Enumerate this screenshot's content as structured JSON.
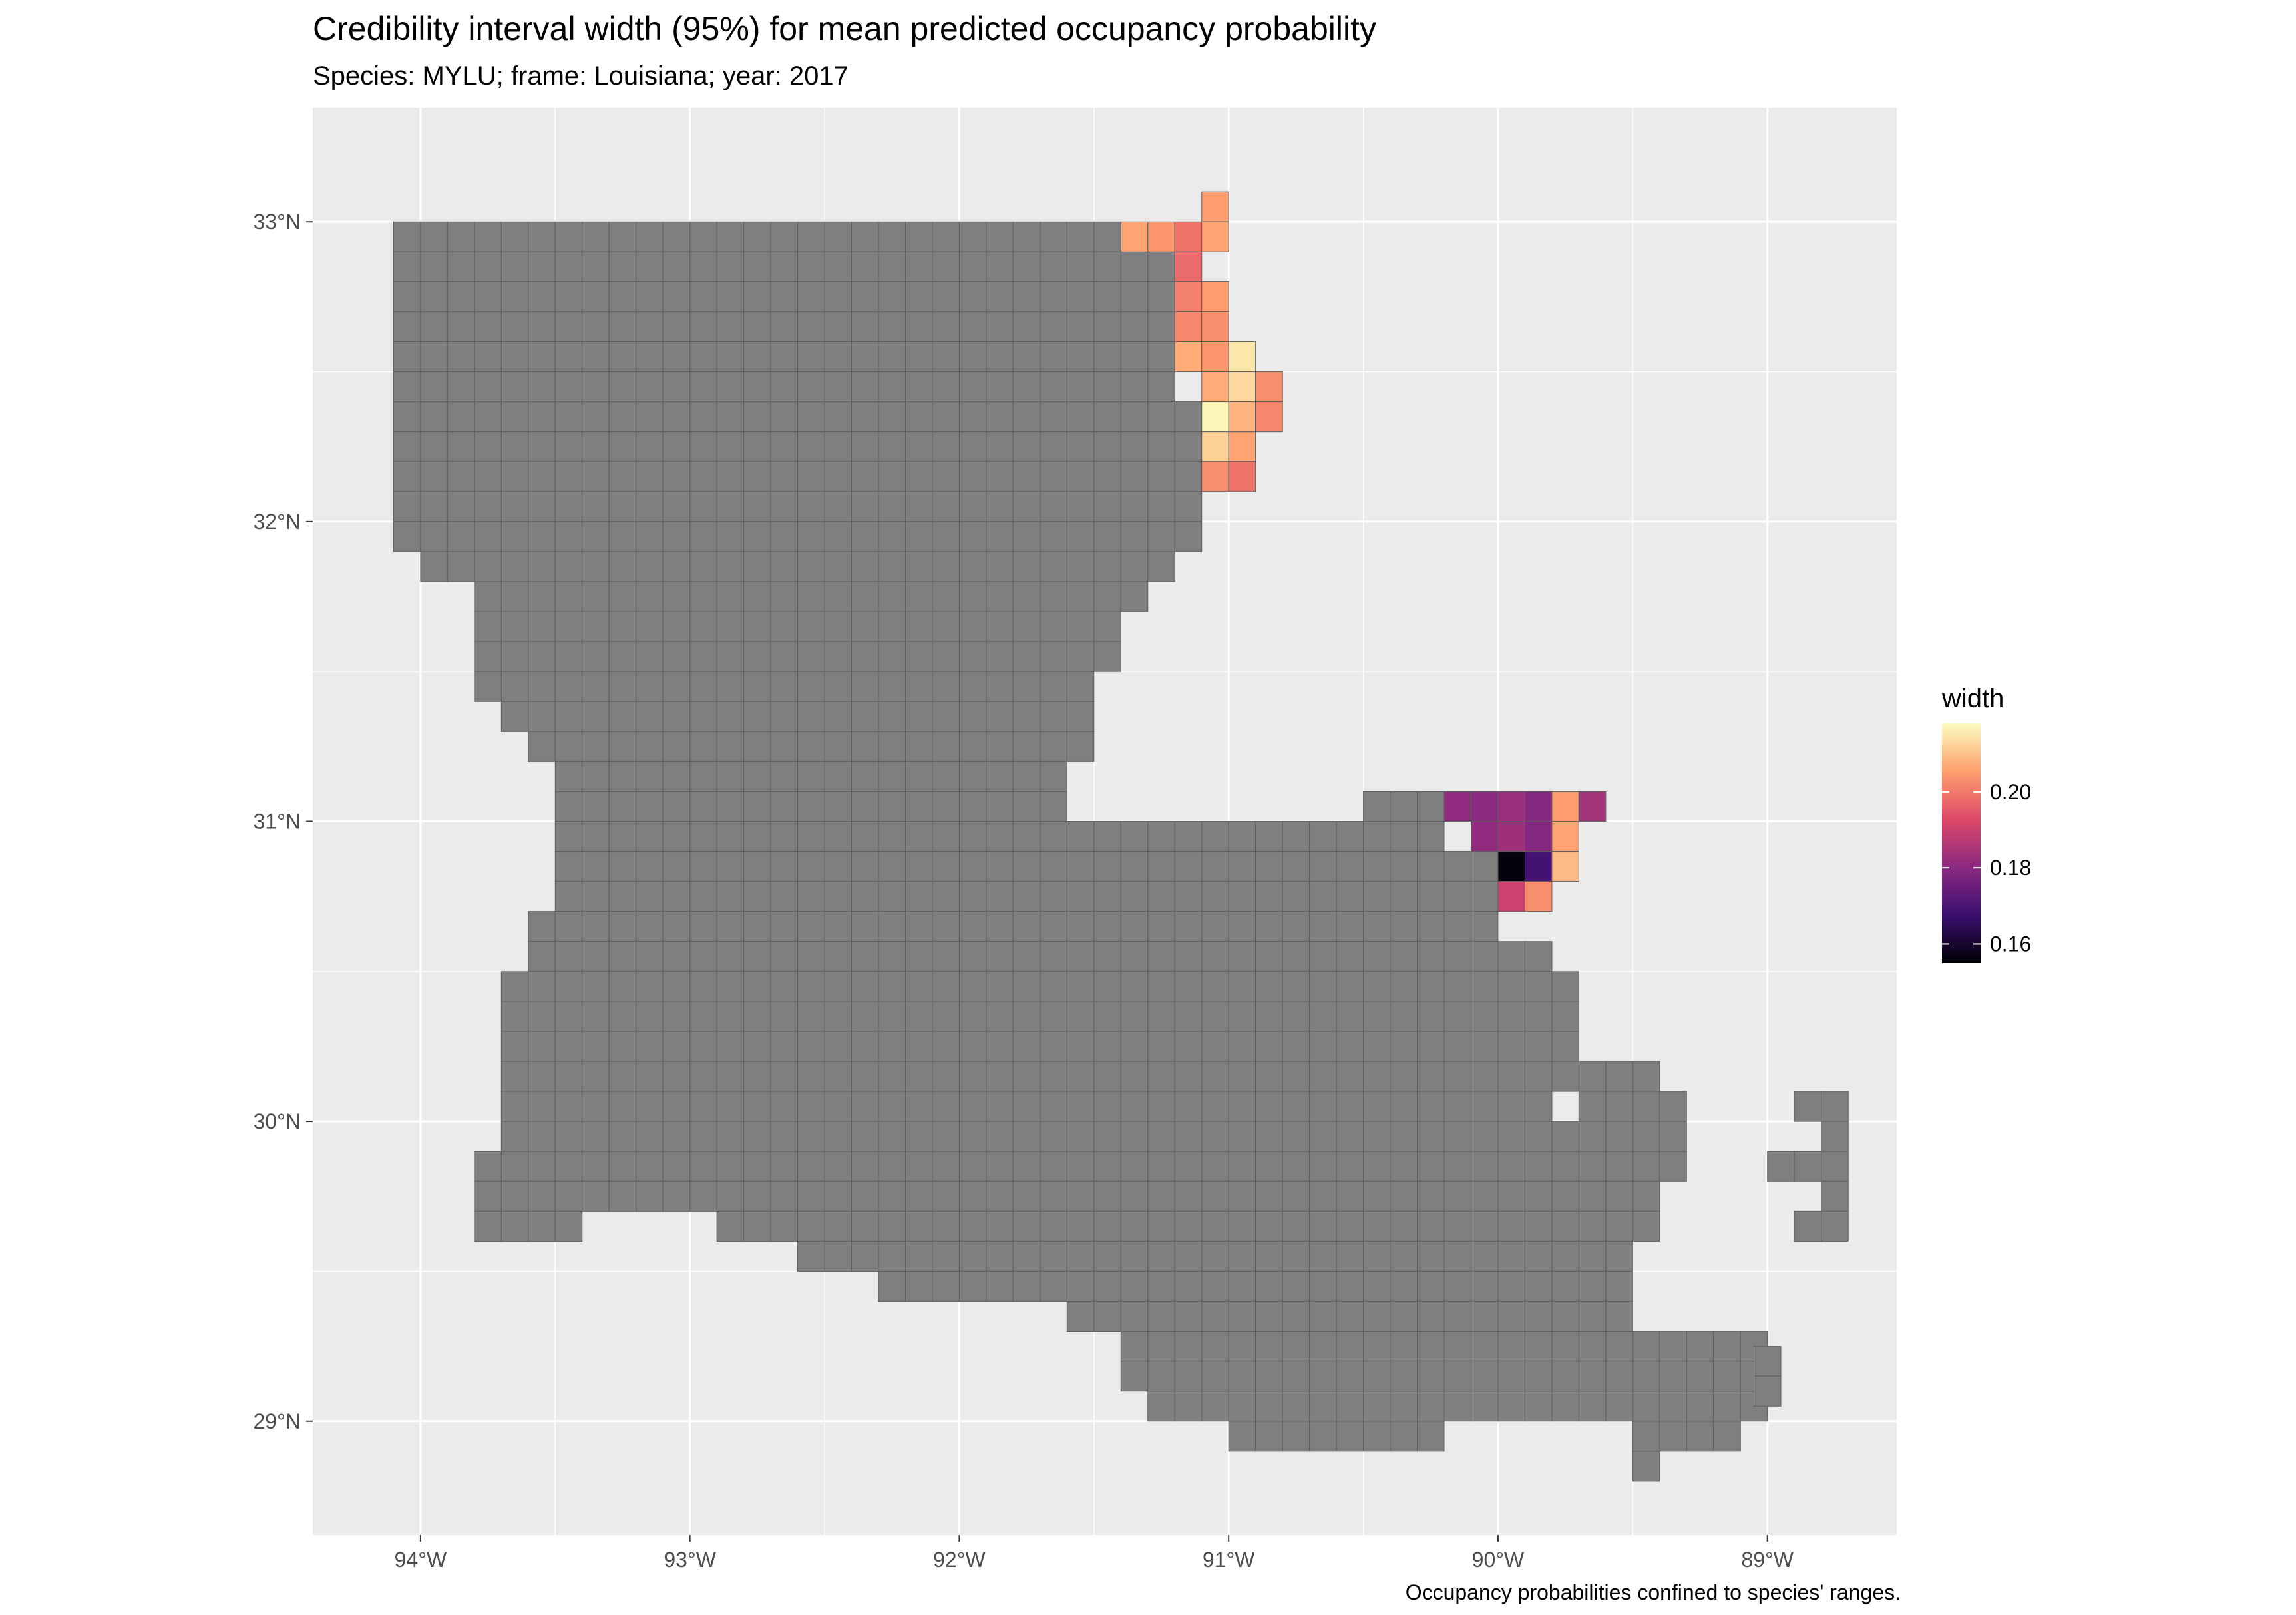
{
  "title": "Credibility interval width (95%) for mean predicted occupancy probability",
  "subtitle": "Species: MYLU; frame: Louisiana; year: 2017",
  "caption": "Occupancy probabilities confined to species' ranges.",
  "chart_data": {
    "type": "map",
    "region": "Louisiana",
    "xlim": [
      -94.4,
      -88.52
    ],
    "ylim": [
      28.62,
      33.38
    ],
    "x_ticks": [
      -94,
      -93,
      -92,
      -91,
      -90,
      -89
    ],
    "x_tick_labels": [
      "94°W",
      "93°W",
      "92°W",
      "91°W",
      "90°W",
      "89°W"
    ],
    "y_ticks": [
      29,
      30,
      31,
      32,
      33
    ],
    "y_tick_labels": [
      "29°N",
      "30°N",
      "31°N",
      "32°N",
      "33°N"
    ],
    "legend": {
      "title": "width",
      "range": [
        0.155,
        0.218
      ],
      "breaks": [
        0.16,
        0.18,
        0.2
      ],
      "break_labels": [
        "0.16",
        "0.18",
        "0.20"
      ],
      "colormap": "magma",
      "colormap_stops": [
        "#000004",
        "#3b0f70",
        "#8c2981",
        "#de4968",
        "#fe9f6d",
        "#fcfdbf"
      ]
    },
    "na_fill": "#7f7f7f",
    "cell_outline": "#5e5e5e",
    "panel_background": "#ebebeb",
    "gridline_color": "#ffffff",
    "cell_size_deg": [
      0.1,
      0.1
    ],
    "state_rows": [
      {
        "lat": 32.95,
        "spans": [
          [
            -94.1,
            -91.4
          ]
        ]
      },
      {
        "lat": 32.85,
        "spans": [
          [
            -94.1,
            -91.15
          ]
        ]
      },
      {
        "lat": 32.75,
        "spans": [
          [
            -94.1,
            -91.15
          ]
        ]
      },
      {
        "lat": 32.65,
        "spans": [
          [
            -94.1,
            -91.15
          ]
        ]
      },
      {
        "lat": 32.55,
        "spans": [
          [
            -94.1,
            -91.15
          ]
        ]
      },
      {
        "lat": 32.45,
        "spans": [
          [
            -94.1,
            -91.15
          ]
        ]
      },
      {
        "lat": 32.35,
        "spans": [
          [
            -94.1,
            -91.1
          ]
        ]
      },
      {
        "lat": 32.25,
        "spans": [
          [
            -94.1,
            -91.1
          ]
        ]
      },
      {
        "lat": 32.15,
        "spans": [
          [
            -94.1,
            -91.1
          ]
        ]
      },
      {
        "lat": 32.05,
        "spans": [
          [
            -94.1,
            -91.05
          ]
        ]
      },
      {
        "lat": 31.95,
        "spans": [
          [
            -94.1,
            -91.05
          ]
        ]
      },
      {
        "lat": 31.85,
        "spans": [
          [
            -94.0,
            -91.25
          ]
        ]
      },
      {
        "lat": 31.75,
        "spans": [
          [
            -93.8,
            -91.25
          ]
        ]
      },
      {
        "lat": 31.65,
        "spans": [
          [
            -93.8,
            -91.4
          ]
        ]
      },
      {
        "lat": 31.55,
        "spans": [
          [
            -93.8,
            -91.4
          ]
        ]
      },
      {
        "lat": 31.45,
        "spans": [
          [
            -93.8,
            -91.5
          ]
        ]
      },
      {
        "lat": 31.35,
        "spans": [
          [
            -93.7,
            -91.5
          ]
        ]
      },
      {
        "lat": 31.25,
        "spans": [
          [
            -93.6,
            -91.5
          ]
        ]
      },
      {
        "lat": 31.15,
        "spans": [
          [
            -93.5,
            -91.6
          ]
        ]
      },
      {
        "lat": 31.05,
        "spans": [
          [
            -93.5,
            -91.6
          ]
        ]
      },
      {
        "lat": 30.95,
        "spans": [
          [
            -93.5,
            -90.2
          ]
        ]
      },
      {
        "lat": 30.85,
        "spans": [
          [
            -93.5,
            -90.05
          ]
        ]
      },
      {
        "lat": 30.75,
        "spans": [
          [
            -93.5,
            -90.05
          ]
        ]
      },
      {
        "lat": 30.65,
        "spans": [
          [
            -93.6,
            -90.0
          ]
        ]
      },
      {
        "lat": 30.55,
        "spans": [
          [
            -93.6,
            -89.75
          ]
        ]
      },
      {
        "lat": 30.45,
        "spans": [
          [
            -93.7,
            -89.7
          ]
        ]
      },
      {
        "lat": 30.35,
        "spans": [
          [
            -93.7,
            -89.7
          ]
        ]
      },
      {
        "lat": 30.25,
        "spans": [
          [
            -93.7,
            -89.65
          ]
        ]
      },
      {
        "lat": 30.15,
        "spans": [
          [
            -93.7,
            -89.4
          ],
          [
            -89.3,
            -89.2
          ]
        ]
      },
      {
        "lat": 30.05,
        "spans": [
          [
            -93.7,
            -89.3
          ]
        ]
      },
      {
        "lat": 29.95,
        "spans": [
          [
            -93.7,
            -89.3
          ]
        ]
      },
      {
        "lat": 29.85,
        "spans": [
          [
            -93.8,
            -89.3
          ]
        ]
      },
      {
        "lat": 29.75,
        "spans": [
          [
            -93.8,
            -89.3
          ]
        ]
      },
      {
        "lat": 29.65,
        "spans": [
          [
            -93.8,
            -93.4
          ],
          [
            -92.9,
            -89.3
          ]
        ]
      },
      {
        "lat": 29.55,
        "spans": [
          [
            -92.6,
            -89.5
          ]
        ]
      },
      {
        "lat": 29.45,
        "spans": [
          [
            -92.3,
            -89.5
          ]
        ]
      },
      {
        "lat": 29.35,
        "spans": [
          [
            -91.6,
            -89.5
          ]
        ]
      },
      {
        "lat": 29.25,
        "spans": [
          [
            -91.4,
            -89.05
          ]
        ]
      },
      {
        "lat": 29.15,
        "spans": [
          [
            -91.4,
            -89.05
          ]
        ]
      },
      {
        "lat": 29.05,
        "spans": [
          [
            -91.3,
            -89.05
          ]
        ]
      },
      {
        "lat": 28.95,
        "spans": [
          [
            -91.0,
            -90.2
          ],
          [
            -89.5,
            -89.1
          ]
        ]
      },
      {
        "lat": 28.85,
        "spans": [
          [
            -89.5,
            -89.4
          ]
        ]
      }
    ],
    "state_holes": [
      [
        -92.0,
        29.65
      ],
      [
        -89.75,
        30.05
      ],
      [
        -90.6,
        29.15
      ],
      [
        -90.5,
        29.15
      ],
      [
        -89.25,
        30.15
      ],
      [
        -89.25,
        29.95
      ],
      [
        -89.35,
        29.75
      ],
      [
        -89.35,
        29.65
      ]
    ],
    "extra_cells": [
      [
        -90.45,
        31.05
      ],
      [
        -90.35,
        31.05
      ],
      [
        -90.25,
        31.05
      ],
      [
        -88.85,
        30.05
      ],
      [
        -88.75,
        30.05
      ],
      [
        -88.75,
        29.95
      ],
      [
        -88.95,
        29.85
      ],
      [
        -88.85,
        29.85
      ],
      [
        -88.75,
        29.85
      ],
      [
        -88.75,
        29.75
      ],
      [
        -88.85,
        29.65
      ],
      [
        -88.75,
        29.65
      ],
      [
        -89.0,
        29.2
      ],
      [
        -89.0,
        29.1
      ]
    ],
    "values": [
      {
        "lon": -91.05,
        "lat": 33.05,
        "width": 0.205
      },
      {
        "lon": -91.35,
        "lat": 32.95,
        "width": 0.206
      },
      {
        "lon": -91.25,
        "lat": 32.95,
        "width": 0.204
      },
      {
        "lon": -91.15,
        "lat": 32.95,
        "width": 0.199
      },
      {
        "lon": -91.05,
        "lat": 32.95,
        "width": 0.206
      },
      {
        "lon": -91.15,
        "lat": 32.85,
        "width": 0.198
      },
      {
        "lon": -91.15,
        "lat": 32.75,
        "width": 0.201
      },
      {
        "lon": -91.05,
        "lat": 32.75,
        "width": 0.205
      },
      {
        "lon": -91.15,
        "lat": 32.65,
        "width": 0.202
      },
      {
        "lon": -91.05,
        "lat": 32.65,
        "width": 0.203
      },
      {
        "lon": -91.15,
        "lat": 32.55,
        "width": 0.207
      },
      {
        "lon": -91.05,
        "lat": 32.55,
        "width": 0.204
      },
      {
        "lon": -90.95,
        "lat": 32.55,
        "width": 0.215
      },
      {
        "lon": -91.05,
        "lat": 32.45,
        "width": 0.207
      },
      {
        "lon": -90.95,
        "lat": 32.45,
        "width": 0.213
      },
      {
        "lon": -90.85,
        "lat": 32.45,
        "width": 0.203
      },
      {
        "lon": -91.05,
        "lat": 32.35,
        "width": 0.217
      },
      {
        "lon": -90.95,
        "lat": 32.35,
        "width": 0.208
      },
      {
        "lon": -90.85,
        "lat": 32.35,
        "width": 0.202
      },
      {
        "lon": -91.05,
        "lat": 32.25,
        "width": 0.212
      },
      {
        "lon": -90.95,
        "lat": 32.25,
        "width": 0.206
      },
      {
        "lon": -91.05,
        "lat": 32.15,
        "width": 0.203
      },
      {
        "lon": -90.95,
        "lat": 32.15,
        "width": 0.199
      },
      {
        "lon": -90.15,
        "lat": 31.05,
        "width": 0.181
      },
      {
        "lon": -90.05,
        "lat": 31.05,
        "width": 0.18
      },
      {
        "lon": -89.95,
        "lat": 31.05,
        "width": 0.182
      },
      {
        "lon": -89.85,
        "lat": 31.05,
        "width": 0.179
      },
      {
        "lon": -89.75,
        "lat": 31.05,
        "width": 0.205
      },
      {
        "lon": -89.65,
        "lat": 31.05,
        "width": 0.184
      },
      {
        "lon": -90.05,
        "lat": 30.95,
        "width": 0.181
      },
      {
        "lon": -89.95,
        "lat": 30.95,
        "width": 0.183
      },
      {
        "lon": -89.85,
        "lat": 30.95,
        "width": 0.179
      },
      {
        "lon": -89.75,
        "lat": 30.95,
        "width": 0.206
      },
      {
        "lon": -89.95,
        "lat": 30.85,
        "width": 0.156
      },
      {
        "lon": -89.85,
        "lat": 30.85,
        "width": 0.169
      },
      {
        "lon": -89.75,
        "lat": 30.85,
        "width": 0.209
      },
      {
        "lon": -89.95,
        "lat": 30.75,
        "width": 0.19
      },
      {
        "lon": -89.85,
        "lat": 30.75,
        "width": 0.203
      }
    ]
  }
}
